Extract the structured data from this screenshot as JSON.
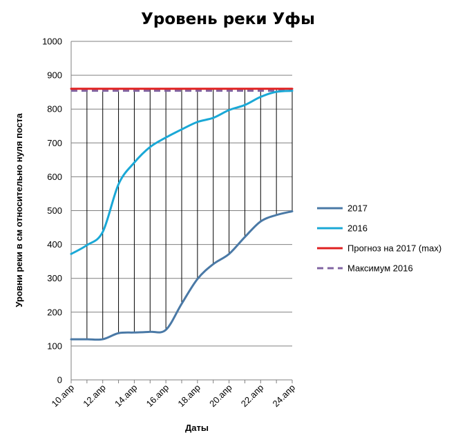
{
  "chart_data": {
    "type": "line",
    "title": "Уровень реки Уфы",
    "xlabel": "Даты",
    "ylabel": "Уровни реки в см относительно  нуля поста",
    "ylim": [
      0,
      1000
    ],
    "yticks": [
      0,
      100,
      200,
      300,
      400,
      500,
      600,
      700,
      800,
      900,
      1000
    ],
    "x": [
      "10.апр",
      "11.апр",
      "12.апр",
      "13.апр",
      "14.апр",
      "15.апр",
      "16.апр",
      "17.апр",
      "18.апр",
      "19.апр",
      "20.апр",
      "21.апр",
      "22.апр",
      "23.апр",
      "24.апр"
    ],
    "x_tick_labels": [
      "10.апр",
      "12.апр",
      "14.апр",
      "16.апр",
      "18.апр",
      "20.апр",
      "22.апр",
      "24.апр"
    ],
    "grid": true,
    "drop_lines": true,
    "legend_position": "right",
    "series": [
      {
        "name": "2017",
        "color": "#4a79a6",
        "style": "solid",
        "values": [
          120,
          120,
          120,
          138,
          140,
          142,
          148,
          225,
          298,
          342,
          372,
          422,
          468,
          487,
          498
        ]
      },
      {
        "name": "2016",
        "color": "#1aa8d6",
        "style": "solid",
        "values": [
          372,
          398,
          437,
          578,
          642,
          688,
          716,
          740,
          762,
          774,
          797,
          812,
          836,
          851,
          854
        ]
      },
      {
        "name": "Прогноз на 2017 (max)",
        "color": "#e02020",
        "style": "solid",
        "values": [
          860,
          860,
          860,
          860,
          860,
          860,
          860,
          860,
          860,
          860,
          860,
          860,
          860,
          860,
          860
        ]
      },
      {
        "name": "Максимум  2016",
        "color": "#8064a2",
        "style": "dashed",
        "values": [
          854,
          854,
          854,
          854,
          854,
          854,
          854,
          854,
          854,
          854,
          854,
          854,
          854,
          854,
          854
        ]
      }
    ]
  }
}
